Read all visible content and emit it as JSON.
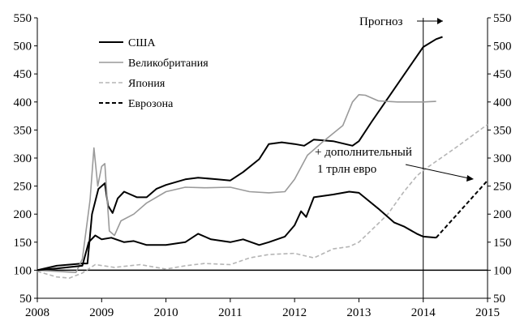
{
  "chart_data": {
    "type": "line",
    "title": "",
    "xlabel": "",
    "ylabel": "",
    "xlim": [
      2008,
      2015
    ],
    "ylim": [
      50,
      550
    ],
    "x_ticks": [
      "2008",
      "2009",
      "2010",
      "2011",
      "2012",
      "2013",
      "2014",
      "2015"
    ],
    "y_ticks": [
      "50",
      "100",
      "150",
      "200",
      "250",
      "300",
      "350",
      "400",
      "450",
      "500",
      "550"
    ],
    "y2_ticks": [
      "50",
      "100",
      "150",
      "200",
      "250",
      "300",
      "350",
      "400",
      "450",
      "500",
      "550"
    ],
    "grid": false,
    "legend_position": "top-left",
    "reference_line": 100,
    "series": [
      {
        "name": "США",
        "color": "#000000",
        "style": "solid",
        "points": [
          [
            2008.0,
            100
          ],
          [
            2008.3,
            108
          ],
          [
            2008.7,
            112
          ],
          [
            2008.78,
            112
          ],
          [
            2008.85,
            200
          ],
          [
            2008.95,
            245
          ],
          [
            2009.05,
            255
          ],
          [
            2009.1,
            215
          ],
          [
            2009.17,
            202
          ],
          [
            2009.25,
            228
          ],
          [
            2009.35,
            240
          ],
          [
            2009.45,
            235
          ],
          [
            2009.55,
            230
          ],
          [
            2009.7,
            230
          ],
          [
            2009.85,
            245
          ],
          [
            2010.0,
            252
          ],
          [
            2010.3,
            262
          ],
          [
            2010.5,
            265
          ],
          [
            2010.8,
            262
          ],
          [
            2011.0,
            260
          ],
          [
            2011.2,
            275
          ],
          [
            2011.45,
            298
          ],
          [
            2011.6,
            325
          ],
          [
            2011.8,
            328
          ],
          [
            2012.0,
            325
          ],
          [
            2012.15,
            322
          ],
          [
            2012.3,
            333
          ],
          [
            2012.6,
            330
          ],
          [
            2012.9,
            322
          ],
          [
            2013.0,
            330
          ],
          [
            2013.2,
            365
          ],
          [
            2013.5,
            415
          ],
          [
            2013.8,
            465
          ],
          [
            2014.0,
            498
          ],
          [
            2014.2,
            512
          ],
          [
            2014.3,
            516
          ]
        ]
      },
      {
        "name": "Великобритания",
        "color": "#9a9a9a",
        "style": "solid",
        "points": [
          [
            2008.0,
            100
          ],
          [
            2008.3,
            98
          ],
          [
            2008.6,
            96
          ],
          [
            2008.7,
            120
          ],
          [
            2008.82,
            225
          ],
          [
            2008.88,
            318
          ],
          [
            2008.94,
            250
          ],
          [
            2009.0,
            285
          ],
          [
            2009.05,
            290
          ],
          [
            2009.12,
            170
          ],
          [
            2009.2,
            162
          ],
          [
            2009.3,
            188
          ],
          [
            2009.5,
            200
          ],
          [
            2009.7,
            220
          ],
          [
            2010.0,
            240
          ],
          [
            2010.3,
            248
          ],
          [
            2010.6,
            247
          ],
          [
            2011.0,
            248
          ],
          [
            2011.3,
            240
          ],
          [
            2011.6,
            238
          ],
          [
            2011.85,
            240
          ],
          [
            2012.0,
            262
          ],
          [
            2012.2,
            305
          ],
          [
            2012.45,
            330
          ],
          [
            2012.75,
            358
          ],
          [
            2012.9,
            400
          ],
          [
            2013.0,
            413
          ],
          [
            2013.1,
            412
          ],
          [
            2013.3,
            402
          ],
          [
            2013.6,
            400
          ],
          [
            2014.0,
            400
          ],
          [
            2014.2,
            401
          ]
        ]
      },
      {
        "name": "Япония",
        "color": "#b5b5b5",
        "style": "dashed",
        "points": [
          [
            2008.0,
            98
          ],
          [
            2008.3,
            88
          ],
          [
            2008.5,
            86
          ],
          [
            2008.7,
            95
          ],
          [
            2008.9,
            110
          ],
          [
            2009.2,
            105
          ],
          [
            2009.6,
            110
          ],
          [
            2010.0,
            102
          ],
          [
            2010.3,
            108
          ],
          [
            2010.6,
            112
          ],
          [
            2011.0,
            110
          ],
          [
            2011.3,
            122
          ],
          [
            2011.6,
            128
          ],
          [
            2012.0,
            130
          ],
          [
            2012.3,
            122
          ],
          [
            2012.6,
            138
          ],
          [
            2012.85,
            142
          ],
          [
            2013.0,
            150
          ],
          [
            2013.2,
            172
          ],
          [
            2013.45,
            200
          ],
          [
            2013.7,
            240
          ],
          [
            2013.9,
            268
          ],
          [
            2014.0,
            278
          ],
          [
            2014.5,
            318
          ],
          [
            2015.0,
            360
          ]
        ]
      },
      {
        "name": "Еврозона",
        "color": "#000000",
        "style": "solid-then-dashed",
        "points": [
          [
            2008.0,
            100
          ],
          [
            2008.3,
            103
          ],
          [
            2008.7,
            108
          ],
          [
            2008.8,
            150
          ],
          [
            2008.9,
            162
          ],
          [
            2009.0,
            155
          ],
          [
            2009.15,
            158
          ],
          [
            2009.35,
            150
          ],
          [
            2009.5,
            152
          ],
          [
            2009.7,
            145
          ],
          [
            2010.0,
            145
          ],
          [
            2010.3,
            150
          ],
          [
            2010.5,
            165
          ],
          [
            2010.7,
            155
          ],
          [
            2011.0,
            150
          ],
          [
            2011.2,
            155
          ],
          [
            2011.45,
            145
          ],
          [
            2011.6,
            150
          ],
          [
            2011.85,
            160
          ],
          [
            2012.0,
            180
          ],
          [
            2012.1,
            205
          ],
          [
            2012.18,
            195
          ],
          [
            2012.3,
            230
          ],
          [
            2012.6,
            235
          ],
          [
            2012.85,
            240
          ],
          [
            2013.0,
            238
          ],
          [
            2013.3,
            210
          ],
          [
            2013.55,
            185
          ],
          [
            2013.7,
            178
          ],
          [
            2013.9,
            165
          ],
          [
            2014.0,
            160
          ],
          [
            2014.2,
            158
          ]
        ],
        "forecast_points": [
          [
            2014.2,
            158
          ],
          [
            2015.0,
            260
          ]
        ]
      }
    ],
    "annotations": {
      "forecast_label": "Прогноз",
      "forecast_year": 2014,
      "ecb_note_line1": "+ дополнительный",
      "ecb_note_line2": "1 трлн евро"
    }
  }
}
